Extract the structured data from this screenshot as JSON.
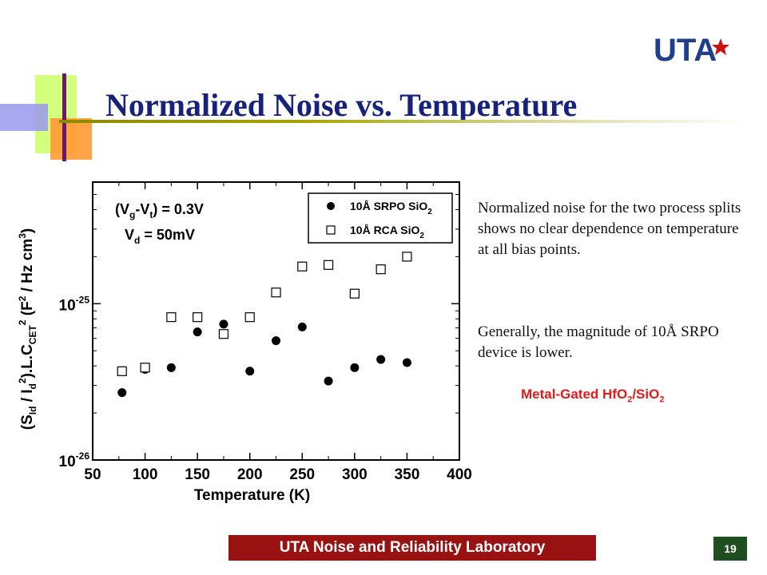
{
  "slide": {
    "title": "Normalized Noise vs. Temperature",
    "logo_text": "UTA",
    "description": [
      "Normalized noise for the two process splits shows no clear dependence on temperature at all bias points.",
      "Generally, the magnitude of 10Å SRPO device is lower."
    ],
    "subtitle": {
      "main": "Metal-Gated HfO",
      "sub1": "2",
      "mid": "/SiO",
      "sub2": "2"
    },
    "footer": "UTA Noise and Reliability Laboratory",
    "page_number": "19",
    "colors": {
      "title": "#17237a",
      "footer_bg": "#991111",
      "subtitle": "#e21a1a",
      "page_bg": "#1f4f1f",
      "logo": "#1f3f8a",
      "star": "#cc1111"
    }
  },
  "chart_data": {
    "type": "scatter",
    "xlabel": "Temperature (K)",
    "ylabel_parts": [
      "(S",
      "Id",
      " / I",
      "d",
      "2",
      ").L.C",
      "CET",
      "2",
      " (F",
      "2",
      " / Hz cm",
      "3",
      ")"
    ],
    "xlim": [
      50,
      400
    ],
    "ylim": [
      1e-26,
      6e-25
    ],
    "log_y": true,
    "x_ticks": [
      50,
      100,
      150,
      200,
      250,
      300,
      350,
      400
    ],
    "y_ticks": [
      {
        "value": 1e-25,
        "base": "10",
        "exp": "-25"
      },
      {
        "value": 1e-26,
        "base": "10",
        "exp": "-26"
      }
    ],
    "annotations": [
      {
        "parts": [
          "(V",
          "g",
          "-V",
          "t",
          ") = 0.3V"
        ]
      },
      {
        "parts": [
          "V",
          "d",
          " = 50mV"
        ]
      }
    ],
    "legend_position": "top-right",
    "series": [
      {
        "name_parts": [
          "10Å SRPO SiO",
          "2"
        ],
        "marker": "filled-circle",
        "color": "#000000",
        "x": [
          78,
          100,
          125,
          150,
          175,
          200,
          225,
          250,
          275,
          300,
          325,
          350
        ],
        "y": [
          2.7e-26,
          3.8e-26,
          3.9e-26,
          6.6e-26,
          7.4e-26,
          3.7e-26,
          5.8e-26,
          7.1e-26,
          3.2e-26,
          3.9e-26,
          4.4e-26,
          4.2e-26
        ]
      },
      {
        "name_parts": [
          "10Å RCA SiO",
          "2"
        ],
        "marker": "open-square",
        "color": "#000000",
        "x": [
          78,
          100,
          125,
          150,
          175,
          200,
          225,
          250,
          275,
          300,
          325,
          350
        ],
        "y": [
          3.7e-26,
          3.9e-26,
          8.2e-26,
          8.2e-26,
          6.4e-26,
          8.2e-26,
          1.18e-25,
          1.73e-25,
          1.77e-25,
          1.16e-25,
          1.66e-25,
          2e-25
        ]
      }
    ]
  }
}
